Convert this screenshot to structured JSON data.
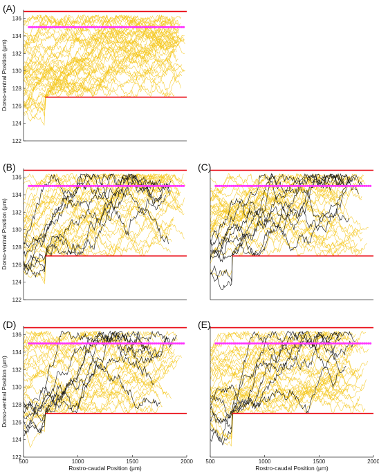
{
  "chart_data": [
    {
      "type": "line",
      "panel_label": "(A)",
      "xlabel": "",
      "ylabel": "Dorso-ventral Position (μm)",
      "xlim": [
        500,
        2000
      ],
      "ylim": [
        122,
        137
      ],
      "yticks": [
        "122",
        "124",
        "126",
        "128",
        "130",
        "132",
        "134",
        "136"
      ],
      "xticks": [],
      "boundaries": {
        "upper_y": 136.8,
        "lower_y": 127.0,
        "lower_x_start": 700
      },
      "target_line": {
        "y": 135.0,
        "x_start": 550,
        "x_end": 1980
      },
      "background_traces": 45,
      "highlighted_traces": 0,
      "trace_end_range": [
        1850,
        1990
      ],
      "colors": {
        "boundary": "#e8000b",
        "target": "#ff33ff",
        "trace": "#f5c518",
        "highlight": "#111111"
      }
    },
    {
      "type": "line",
      "panel_label": "(B)",
      "xlabel": "",
      "ylabel": "Dorso-ventral Position (μm)",
      "xlim": [
        500,
        2000
      ],
      "ylim": [
        122,
        137
      ],
      "yticks": [
        "122",
        "124",
        "126",
        "128",
        "130",
        "132",
        "134",
        "136"
      ],
      "xticks": [],
      "boundaries": {
        "upper_y": 136.8,
        "lower_y": 127.0,
        "lower_x_start": 700
      },
      "target_line": {
        "y": 135.0,
        "x_start": 550,
        "x_end": 1980
      },
      "background_traces": 30,
      "highlighted_traces": 7,
      "trace_end_range": [
        1700,
        1990
      ],
      "colors": {
        "boundary": "#e8000b",
        "target": "#ff33ff",
        "trace": "#f5c518",
        "highlight": "#111111"
      }
    },
    {
      "type": "line",
      "panel_label": "(C)",
      "xlabel": "",
      "ylabel": "",
      "xlim": [
        500,
        2000
      ],
      "ylim": [
        122,
        137
      ],
      "yticks": [],
      "xticks": [],
      "boundaries": {
        "upper_y": 136.8,
        "lower_y": 127.0,
        "lower_x_start": 700
      },
      "target_line": {
        "y": 135.0,
        "x_start": 550,
        "x_end": 1980
      },
      "background_traces": 30,
      "highlighted_traces": 8,
      "trace_end_range": [
        1650,
        1950
      ],
      "colors": {
        "boundary": "#e8000b",
        "target": "#ff33ff",
        "trace": "#f5c518",
        "highlight": "#111111"
      }
    },
    {
      "type": "line",
      "panel_label": "(D)",
      "xlabel": "Rostro-caudal Position (μm)",
      "ylabel": "Dorso-ventral Position (μm)",
      "xlim": [
        500,
        2000
      ],
      "ylim": [
        122,
        137
      ],
      "yticks": [
        "122",
        "124",
        "126",
        "128",
        "130",
        "132",
        "134",
        "136"
      ],
      "xticks": [
        "500",
        "1000",
        "1500",
        "2000"
      ],
      "boundaries": {
        "upper_y": 136.8,
        "lower_y": 127.0,
        "lower_x_start": 700
      },
      "target_line": {
        "y": 135.0,
        "x_start": 550,
        "x_end": 1980
      },
      "background_traces": 30,
      "highlighted_traces": 7,
      "trace_end_range": [
        1600,
        1950
      ],
      "colors": {
        "boundary": "#e8000b",
        "target": "#ff33ff",
        "trace": "#f5c518",
        "highlight": "#111111"
      }
    },
    {
      "type": "line",
      "panel_label": "(E)",
      "xlabel": "Rostro-caudal Position (μm)",
      "ylabel": "",
      "xlim": [
        500,
        2000
      ],
      "ylim": [
        122,
        137
      ],
      "yticks": [],
      "xticks": [
        "500",
        "1000",
        "1500",
        "2000"
      ],
      "boundaries": {
        "upper_y": 136.8,
        "lower_y": 127.0,
        "lower_x_start": 700
      },
      "target_line": {
        "y": 135.0,
        "x_start": 550,
        "x_end": 1980
      },
      "background_traces": 35,
      "highlighted_traces": 6,
      "trace_end_range": [
        1650,
        1950
      ],
      "colors": {
        "boundary": "#e8000b",
        "target": "#ff33ff",
        "trace": "#f5c518",
        "highlight": "#111111"
      }
    }
  ]
}
